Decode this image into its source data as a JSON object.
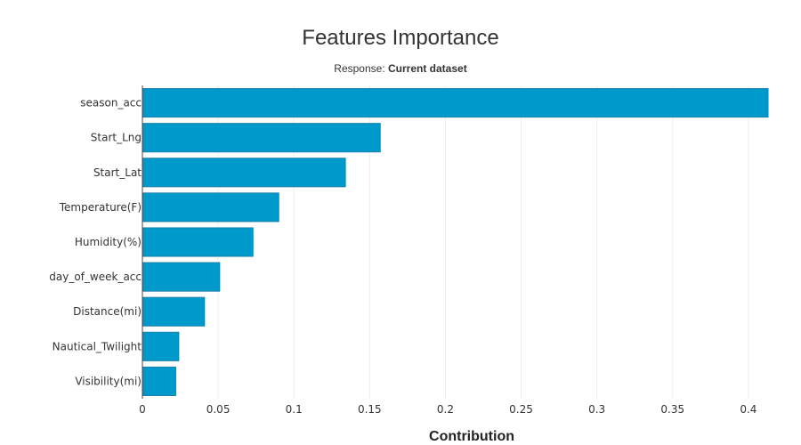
{
  "chart_data": {
    "type": "bar",
    "orientation": "horizontal",
    "title": "Features Importance",
    "subtitle_prefix": "Response: ",
    "subtitle_value": "Current dataset",
    "xlabel": "Contribution",
    "ylabel": "",
    "xlim": [
      0,
      0.413
    ],
    "xticks": [
      0,
      0.05,
      0.1,
      0.15,
      0.2,
      0.25,
      0.3,
      0.35,
      0.4
    ],
    "xtick_labels": [
      "0",
      "0.05",
      "0.1",
      "0.15",
      "0.2",
      "0.25",
      "0.3",
      "0.35",
      "0.4"
    ],
    "grid": true,
    "colors": {
      "bar": "#0099cc",
      "bar_edge": "#1a7fa6"
    },
    "categories": [
      "season_acc",
      "Start_Lng",
      "Start_Lat",
      "Temperature(F)",
      "Humidity(%)",
      "day_of_week_acc",
      "Distance(mi)",
      "Nautical_Twilight",
      "Visibility(mi)"
    ],
    "values": [
      0.413,
      0.157,
      0.134,
      0.09,
      0.073,
      0.051,
      0.041,
      0.024,
      0.022
    ]
  }
}
